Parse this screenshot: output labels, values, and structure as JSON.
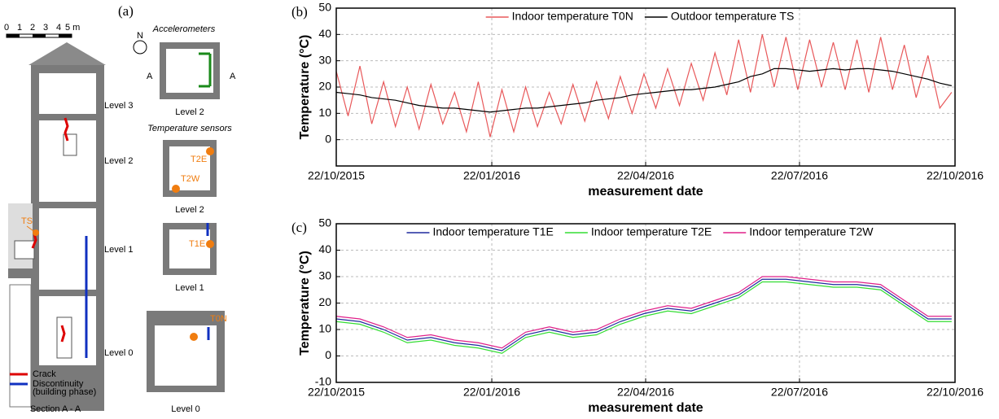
{
  "diagram": {
    "panel_label": "(a)",
    "scale": [
      "0",
      "1",
      "2",
      "3",
      "4",
      "5 m"
    ],
    "levels": [
      "Level 3",
      "Level 2",
      "Level 1",
      "Level 0"
    ],
    "outdoor_sensor": "TS",
    "legend": [
      "Crack",
      "Discontinuity",
      "(building phase)"
    ],
    "section_title": "Section A - A",
    "north": "N",
    "accelerometers": "Accelerometers",
    "temperature_sensors": "Temperature sensors",
    "section_marks": [
      "A",
      "A"
    ],
    "sensors": [
      "T2E",
      "T2W",
      "T1E",
      "T0N"
    ],
    "plan_levels": [
      "Level 2",
      "Level 2",
      "Level 1",
      "Level 0"
    ]
  },
  "chart_data": [
    {
      "type": "line",
      "label": "(b)",
      "ylabel": "Temperature (°C)",
      "xlabel": "measurement date",
      "x": [
        "22/10/2015",
        "29/10/2015",
        "05/11/2015",
        "12/11/2015",
        "19/11/2015",
        "26/11/2015",
        "03/12/2015",
        "10/12/2015",
        "17/12/2015",
        "24/12/2015",
        "31/12/2015",
        "07/01/2016",
        "14/01/2016",
        "21/01/2016",
        "28/01/2016",
        "04/02/2016",
        "11/02/2016",
        "18/02/2016",
        "25/02/2016",
        "03/03/2016",
        "10/03/2016",
        "17/03/2016",
        "24/03/2016",
        "31/03/2016",
        "07/04/2016",
        "14/04/2016",
        "21/04/2016",
        "28/04/2016",
        "05/05/2016",
        "12/05/2016",
        "19/05/2016",
        "26/05/2016",
        "02/06/2016",
        "09/06/2016",
        "16/06/2016",
        "23/06/2016",
        "30/06/2016",
        "07/07/2016",
        "14/07/2016",
        "21/07/2016",
        "28/07/2016",
        "04/08/2016",
        "11/08/2016",
        "18/08/2016",
        "25/08/2016",
        "01/09/2016",
        "08/09/2016",
        "15/09/2016",
        "22/09/2016",
        "29/09/2016",
        "06/10/2016",
        "13/10/2016",
        "20/10/2016"
      ],
      "series": [
        {
          "name": "Indoor temperature T0N",
          "color": "#e8585a",
          "values": [
            26,
            9,
            28,
            6,
            22,
            5,
            20,
            4,
            21,
            6,
            18,
            3,
            22,
            1,
            19,
            3,
            20,
            5,
            18,
            6,
            21,
            7,
            22,
            8,
            24,
            10,
            25,
            12,
            27,
            13,
            29,
            15,
            33,
            17,
            38,
            18,
            40,
            20,
            39,
            19,
            38,
            20,
            37,
            19,
            38,
            18,
            39,
            19,
            36,
            16,
            32,
            12,
            18
          ]
        },
        {
          "name": "Outdoor temperature TS",
          "color": "#000000",
          "values": [
            18,
            17.5,
            17,
            16,
            15.5,
            15,
            14,
            13,
            12.5,
            12,
            12,
            11.5,
            11,
            10.5,
            11,
            11.5,
            12,
            12,
            12.5,
            13,
            13.5,
            14,
            15,
            15.5,
            16,
            17,
            17.5,
            18,
            18.5,
            19,
            19,
            19.5,
            20,
            21,
            22,
            24,
            25,
            27,
            27,
            26.5,
            26,
            26.5,
            27,
            26.5,
            27,
            27,
            26.5,
            26,
            25,
            24,
            23,
            21.5,
            20.5
          ]
        }
      ],
      "xlim": [
        "22/10/2015",
        "22/10/2016"
      ],
      "xticks": [
        "22/10/2015",
        "22/01/2016",
        "22/04/2016",
        "22/07/2016",
        "22/10/2016"
      ],
      "ylim": [
        -10,
        50
      ],
      "yticks": [
        0,
        10,
        20,
        30,
        40,
        50
      ],
      "grid": true,
      "legend": "upper center"
    },
    {
      "type": "line",
      "label": "(c)",
      "ylabel": "Temperature (°C)",
      "xlabel": "measurement date",
      "x": [
        "22/10/2015",
        "05/11/2015",
        "19/11/2015",
        "03/12/2015",
        "17/12/2015",
        "31/12/2015",
        "14/01/2016",
        "28/01/2016",
        "11/02/2016",
        "25/02/2016",
        "10/03/2016",
        "24/03/2016",
        "07/04/2016",
        "21/04/2016",
        "05/05/2016",
        "19/05/2016",
        "02/06/2016",
        "16/06/2016",
        "30/06/2016",
        "14/07/2016",
        "28/07/2016",
        "11/08/2016",
        "25/08/2016",
        "08/09/2016",
        "22/09/2016",
        "06/10/2016",
        "20/10/2016"
      ],
      "series": [
        {
          "name": "Indoor temperature T1E",
          "color": "#1f2a9e",
          "values": [
            14,
            13,
            10,
            6,
            7,
            5,
            4,
            2,
            8,
            10,
            8,
            9,
            13,
            16,
            18,
            17,
            20,
            23,
            29,
            29,
            28,
            27,
            27,
            26,
            20,
            14,
            14
          ]
        },
        {
          "name": "Indoor temperature T2E",
          "color": "#33dd33",
          "values": [
            13,
            12,
            9,
            5,
            6,
            4,
            3,
            1,
            7,
            9,
            7,
            8,
            12,
            15,
            17,
            16,
            19,
            22,
            28,
            28,
            27,
            26,
            26,
            25,
            19,
            13,
            13
          ]
        },
        {
          "name": "Indoor temperature T2W",
          "color": "#e0208a",
          "values": [
            15,
            14,
            11,
            7,
            8,
            6,
            5,
            3,
            9,
            11,
            9,
            10,
            14,
            17,
            19,
            18,
            21,
            24,
            30,
            30,
            29,
            28,
            28,
            27,
            21,
            15,
            15
          ]
        }
      ],
      "xlim": [
        "22/10/2015",
        "22/10/2016"
      ],
      "xticks": [
        "22/10/2015",
        "22/01/2016",
        "22/04/2016",
        "22/07/2016",
        "22/10/2016"
      ],
      "ylim": [
        -10,
        50
      ],
      "yticks": [
        -10,
        0,
        10,
        20,
        30,
        40,
        50
      ],
      "grid": true,
      "legend": "upper center"
    }
  ]
}
